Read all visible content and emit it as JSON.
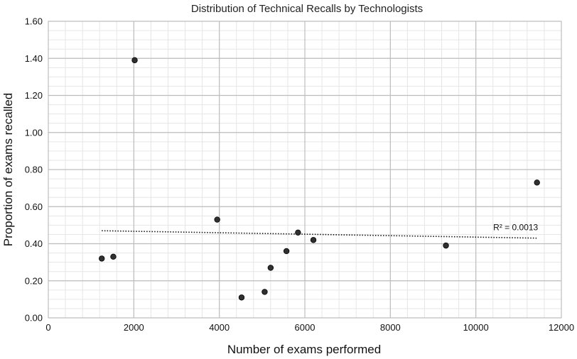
{
  "chart_data": {
    "type": "scatter",
    "title": "Distribution of Technical Recalls by Technologists",
    "xlabel": "Number of exams performed",
    "ylabel": "Proportion of exams recalled",
    "xlim": [
      0,
      12000
    ],
    "ylim": [
      0,
      1.6
    ],
    "x_ticks": [
      "0",
      "2000",
      "4000",
      "6000",
      "8000",
      "10000",
      "12000"
    ],
    "y_ticks": [
      "0.00",
      "0.20",
      "0.40",
      "0.60",
      "0.80",
      "1.00",
      "1.20",
      "1.40",
      "1.60"
    ],
    "grid": true,
    "points": [
      {
        "x": 1250,
        "y": 0.32
      },
      {
        "x": 1520,
        "y": 0.33
      },
      {
        "x": 2020,
        "y": 1.39
      },
      {
        "x": 3950,
        "y": 0.53
      },
      {
        "x": 4520,
        "y": 0.11
      },
      {
        "x": 5060,
        "y": 0.14
      },
      {
        "x": 5200,
        "y": 0.27
      },
      {
        "x": 5570,
        "y": 0.36
      },
      {
        "x": 5840,
        "y": 0.46
      },
      {
        "x": 6200,
        "y": 0.42
      },
      {
        "x": 9300,
        "y": 0.39
      },
      {
        "x": 11430,
        "y": 0.73
      }
    ],
    "trendline": {
      "style": "dotted",
      "x": [
        1250,
        11430
      ],
      "y": [
        0.47,
        0.43
      ],
      "label": "R² = 0.0013"
    }
  }
}
